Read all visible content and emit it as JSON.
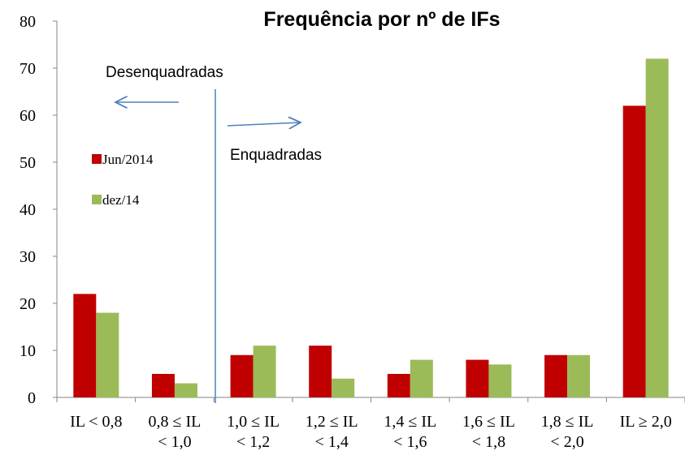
{
  "chart_data": {
    "type": "bar",
    "title": "Frequência por nº de IFs",
    "categories": [
      [
        "IL < 0,8"
      ],
      [
        "0,8 ≤  IL",
        "< 1,0"
      ],
      [
        "1,0 ≤  IL",
        "< 1,2"
      ],
      [
        "1,2 ≤ IL",
        "< 1,4"
      ],
      [
        "1,4 ≤ IL",
        "< 1,6"
      ],
      [
        "1,6 ≤ IL",
        "< 1,8"
      ],
      [
        "1,8 ≤ IL",
        "< 2,0"
      ],
      [
        "IL ≥ 2,0"
      ]
    ],
    "series": [
      {
        "name": "Jun/2014",
        "color": "#c00000",
        "values": [
          22,
          5,
          9,
          11,
          5,
          8,
          9,
          62
        ]
      },
      {
        "name": "dez/14",
        "color": "#9bbb59",
        "values": [
          18,
          3,
          11,
          4,
          8,
          7,
          9,
          72
        ]
      }
    ],
    "ylim": [
      0,
      80
    ],
    "yticks": [
      0,
      10,
      20,
      30,
      40,
      50,
      60,
      70,
      80
    ],
    "annotations": [
      "Desenquadradas",
      "Enquadradas"
    ],
    "legend": "left"
  }
}
